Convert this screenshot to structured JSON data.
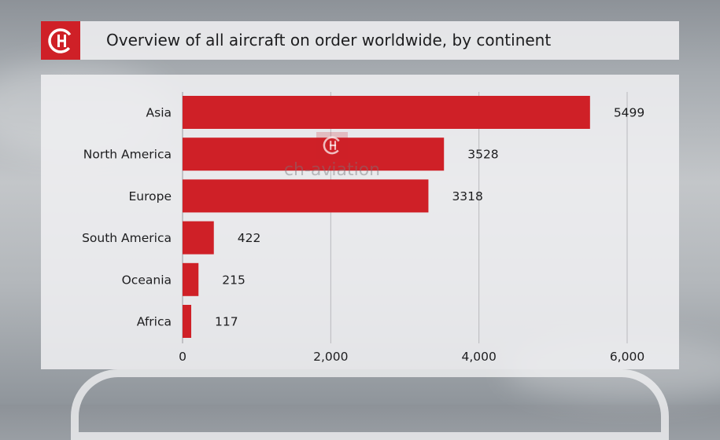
{
  "header": {
    "title": "Overview of all aircraft on order worldwide, by continent",
    "logo_icon": "ch-aviation-logo-icon",
    "brand_color": "#cf2027"
  },
  "watermark": {
    "text": "ch-aviation",
    "icon": "ch-aviation-logo-icon"
  },
  "chart_data": {
    "type": "bar",
    "orientation": "horizontal",
    "categories": [
      "Asia",
      "North America",
      "Europe",
      "South America",
      "Oceania",
      "Africa"
    ],
    "values": [
      5499,
      3528,
      3318,
      422,
      215,
      117
    ],
    "value_labels": [
      "5499",
      "3528",
      "3318",
      "422",
      "215",
      "117"
    ],
    "xlim": [
      0,
      6000
    ],
    "xticks": [
      0,
      2000,
      4000,
      6000
    ],
    "xtick_labels": [
      "0",
      "2,000",
      "4,000",
      "6,000"
    ],
    "grid": "vertical",
    "legend": "none",
    "bar_color": "#cf2027"
  }
}
